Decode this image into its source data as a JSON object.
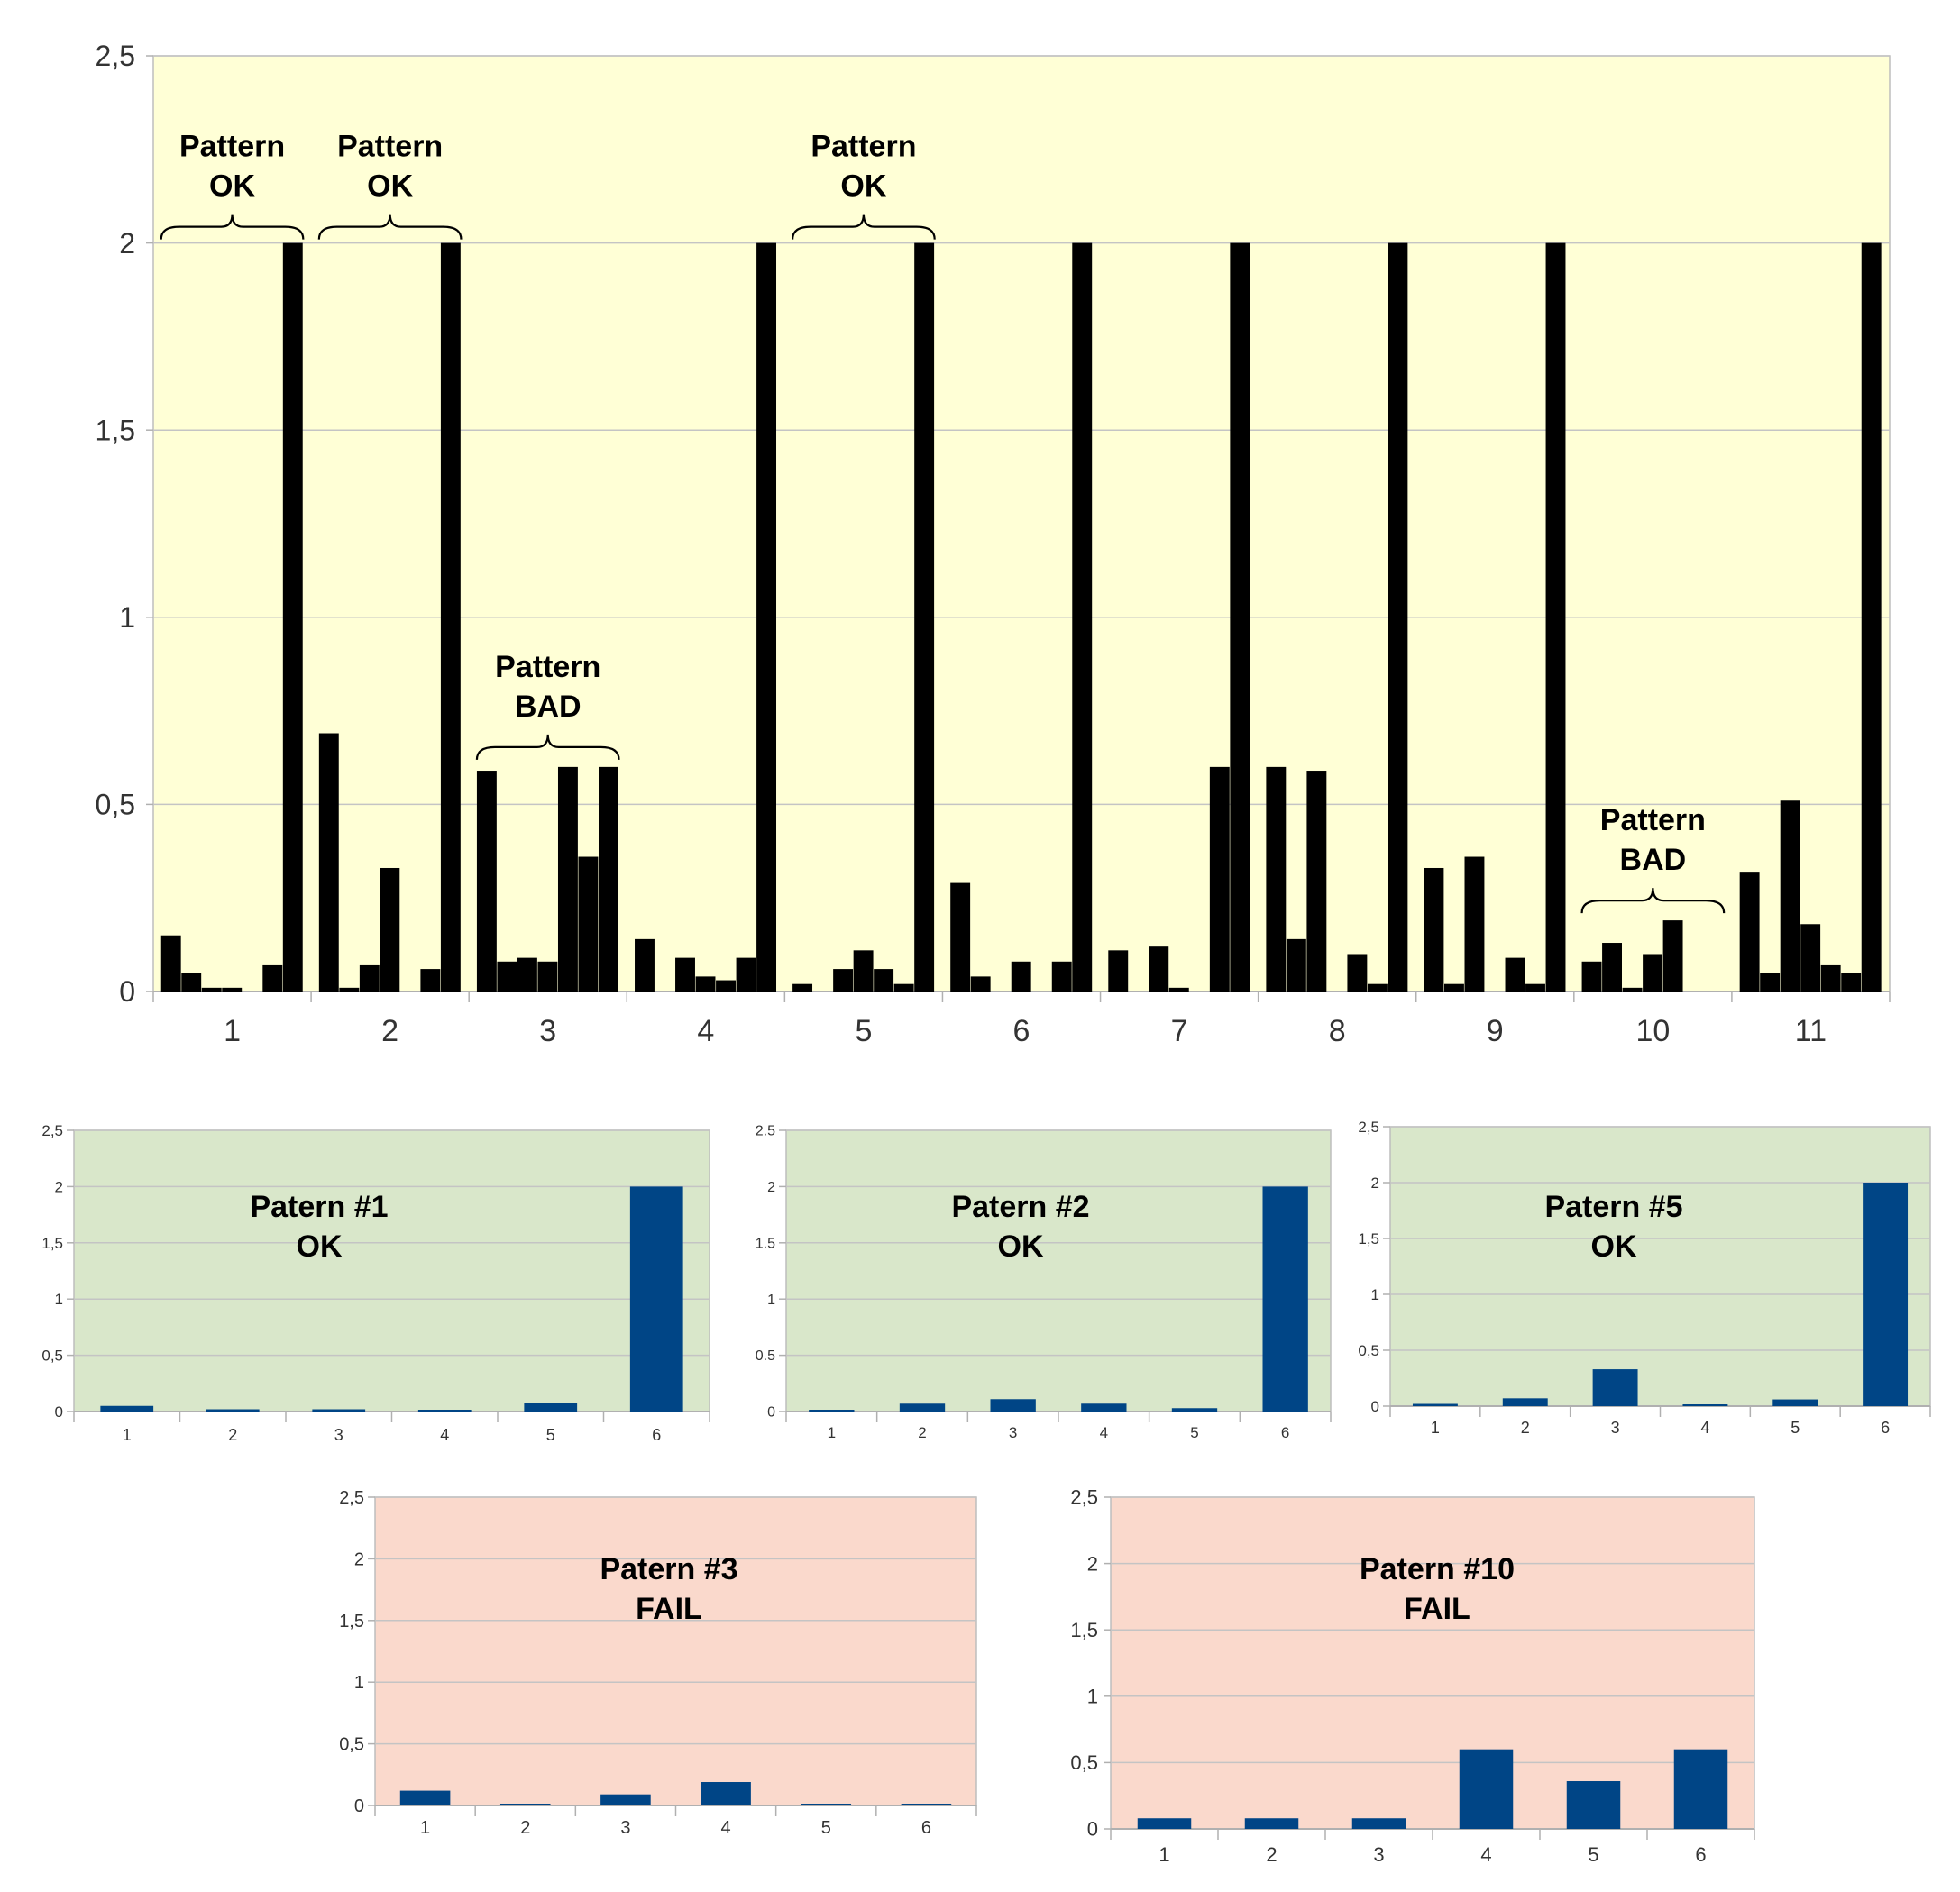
{
  "chart_data": [
    {
      "type": "bar",
      "ylim": [
        0,
        2.5
      ],
      "y_ticks": [
        "0",
        "0,5",
        "1",
        "1,5",
        "2",
        "2,5"
      ],
      "categories": [
        "1",
        "2",
        "3",
        "4",
        "5",
        "6",
        "7",
        "8",
        "9",
        "10",
        "11"
      ],
      "grid": true,
      "colors": {
        "plot_bg": "#ffffd6",
        "bar": "#000000",
        "grid": "#c8c8c8"
      },
      "group_values": [
        [
          0.15,
          0.05,
          0.01,
          0.01,
          0.0,
          0.07,
          2.0
        ],
        [
          0.69,
          0.01,
          0.07,
          0.33,
          0.0,
          0.06,
          2.0
        ],
        [
          0.59,
          0.08,
          0.09,
          0.08,
          0.6,
          0.36,
          0.6
        ],
        [
          0.14,
          0.0,
          0.09,
          0.04,
          0.03,
          0.09,
          2.0
        ],
        [
          0.02,
          0.0,
          0.06,
          0.11,
          0.06,
          0.02,
          2.0
        ],
        [
          0.29,
          0.04,
          0.0,
          0.08,
          0.0,
          0.08,
          2.0
        ],
        [
          0.11,
          0.0,
          0.12,
          0.01,
          0.0,
          0.6,
          2.0
        ],
        [
          0.6,
          0.14,
          0.59,
          0.0,
          0.1,
          0.02,
          2.0
        ],
        [
          0.33,
          0.02,
          0.36,
          0.0,
          0.09,
          0.02,
          2.0
        ],
        [
          0.08,
          0.13,
          0.01,
          0.1,
          0.19,
          0.0,
          0.0
        ],
        [
          0.32,
          0.05,
          0.51,
          0.18,
          0.07,
          0.05,
          2.0
        ]
      ],
      "annotations": [
        {
          "group": 1,
          "line1": "Pattern",
          "line2": "OK"
        },
        {
          "group": 2,
          "line1": "Pattern",
          "line2": "OK"
        },
        {
          "group": 5,
          "line1": "Pattern",
          "line2": "OK"
        },
        {
          "group": 3,
          "line1": "Pattern",
          "line2": "BAD"
        },
        {
          "group": 10,
          "line1": "Pattern",
          "line2": "BAD"
        }
      ]
    },
    {
      "type": "bar",
      "ylim": [
        0,
        2.5
      ],
      "y_ticks": [
        "0",
        "0,5",
        "1",
        "1,5",
        "2",
        "2,5"
      ],
      "categories": [
        "1",
        "2",
        "3",
        "4",
        "5",
        "6"
      ],
      "values": [
        0.05,
        0.02,
        0.02,
        0.01,
        0.08,
        2.0
      ],
      "label_line1": "Patern #1",
      "label_line2": "OK",
      "colors": {
        "plot_bg": "#d9e7ca",
        "bar": "#004586"
      }
    },
    {
      "type": "bar",
      "ylim": [
        0,
        2.5
      ],
      "y_ticks": [
        "0",
        "0.5",
        "1",
        "1.5",
        "2",
        "2.5"
      ],
      "categories": [
        "1",
        "2",
        "3",
        "4",
        "5",
        "6"
      ],
      "values": [
        0.01,
        0.07,
        0.11,
        0.07,
        0.03,
        2.0
      ],
      "label_line1": "Patern #2",
      "label_line2": "OK",
      "colors": {
        "plot_bg": "#d9e7ca",
        "bar": "#004586"
      }
    },
    {
      "type": "bar",
      "ylim": [
        0,
        2.5
      ],
      "y_ticks": [
        "0",
        "0,5",
        "1",
        "1,5",
        "2",
        "2,5"
      ],
      "categories": [
        "1",
        "2",
        "3",
        "4",
        "5",
        "6"
      ],
      "values": [
        0.02,
        0.07,
        0.33,
        0.0,
        0.06,
        2.0
      ],
      "label_line1": "Patern #5",
      "label_line2": "OK",
      "colors": {
        "plot_bg": "#d9e7ca",
        "bar": "#004586"
      }
    },
    {
      "type": "bar",
      "ylim": [
        0,
        2.5
      ],
      "y_ticks": [
        "0",
        "0,5",
        "1",
        "1,5",
        "2",
        "2,5"
      ],
      "categories": [
        "1",
        "2",
        "3",
        "4",
        "5",
        "6"
      ],
      "values": [
        0.12,
        0.01,
        0.09,
        0.19,
        0.0,
        0.0
      ],
      "label_line1": "Patern #3",
      "label_line2": "FAIL",
      "colors": {
        "plot_bg": "#fad9cc",
        "bar": "#004586"
      }
    },
    {
      "type": "bar",
      "ylim": [
        0,
        2.5
      ],
      "y_ticks": [
        "0",
        "0,5",
        "1",
        "1,5",
        "2",
        "2,5"
      ],
      "categories": [
        "1",
        "2",
        "3",
        "4",
        "5",
        "6"
      ],
      "values": [
        0.08,
        0.08,
        0.08,
        0.6,
        0.36,
        0.6
      ],
      "label_line1": "Patern #10",
      "label_line2": "FAIL",
      "colors": {
        "plot_bg": "#fad9cc",
        "bar": "#004586"
      }
    }
  ]
}
